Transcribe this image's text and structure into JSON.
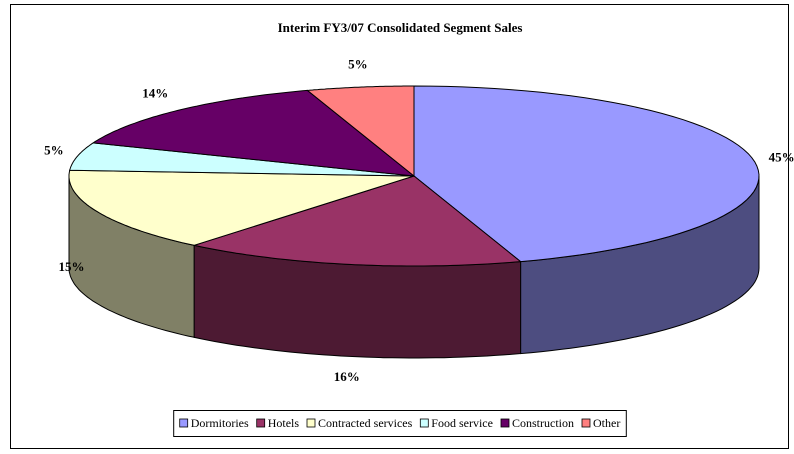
{
  "chart_data": {
    "type": "pie3d",
    "title": "Interim FY3/07 Consolidated Segment Sales",
    "categories": [
      "Dormitories",
      "Hotels",
      "Contracted services",
      "Food service",
      "Construction",
      "Other"
    ],
    "values": [
      45,
      16,
      15,
      5,
      14,
      5
    ],
    "value_labels": [
      "45%",
      "16%",
      "15%",
      "5%",
      "14%",
      "5%"
    ],
    "colors": [
      "#9999ff",
      "#993366",
      "#ffffcc",
      "#ccffff",
      "#660066",
      "#ff8080"
    ],
    "legend": "bottom"
  }
}
